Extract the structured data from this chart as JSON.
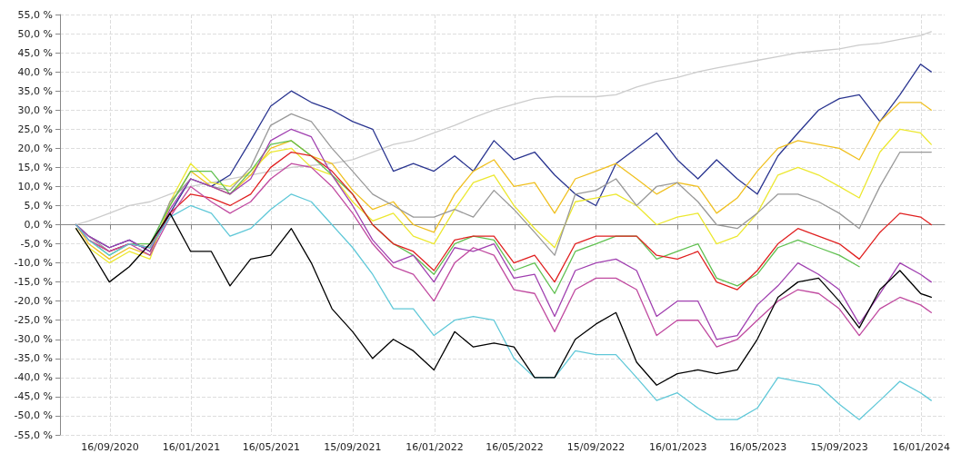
{
  "chart_data": {
    "type": "line",
    "x": [
      "2020-07-27",
      "2020-08-15",
      "2020-09-15",
      "2020-10-15",
      "2020-11-15",
      "2020-12-15",
      "2021-01-15",
      "2021-02-15",
      "2021-03-15",
      "2021-04-15",
      "2021-05-15",
      "2021-06-15",
      "2021-07-15",
      "2021-08-15",
      "2021-09-15",
      "2021-10-15",
      "2021-11-15",
      "2021-12-15",
      "2022-01-15",
      "2022-02-15",
      "2022-03-15",
      "2022-04-15",
      "2022-05-15",
      "2022-06-15",
      "2022-07-15",
      "2022-08-15",
      "2022-09-15",
      "2022-10-15",
      "2022-11-15",
      "2022-12-15",
      "2023-01-15",
      "2023-02-15",
      "2023-03-15",
      "2023-04-15",
      "2023-05-15",
      "2023-06-15",
      "2023-07-15",
      "2023-08-15",
      "2023-09-15",
      "2023-10-15",
      "2023-11-15",
      "2023-12-15",
      "2024-01-15",
      "2024-01-31"
    ],
    "series": [
      {
        "color": "#cccccc",
        "values": [
          0,
          1,
          3,
          5,
          6,
          8,
          10,
          11,
          12,
          13,
          14,
          15,
          15.5,
          16,
          17,
          19,
          21,
          22,
          24,
          26,
          28,
          30,
          31.5,
          33,
          33.5,
          33.5,
          33.5,
          34,
          36,
          37.5,
          38.5,
          40,
          41,
          42,
          43,
          44,
          45,
          45.5,
          46,
          47,
          47.5,
          48.5,
          49.5,
          50.5
        ]
      },
      {
        "color": "#2a3590",
        "values": [
          0,
          -3,
          -6,
          -4,
          -7,
          3,
          12,
          10,
          13,
          22,
          31,
          35,
          32,
          30,
          27,
          25,
          14,
          16,
          14,
          18,
          14,
          22,
          17,
          19,
          13,
          8,
          5,
          16,
          20,
          24,
          17,
          12,
          17,
          12,
          8,
          18,
          24,
          30,
          33,
          34,
          27,
          34,
          42,
          40
        ]
      },
      {
        "color": "#f0c020",
        "values": [
          0,
          -5,
          -9,
          -6,
          -8,
          5,
          14,
          10,
          8,
          13,
          20,
          22,
          18,
          16,
          9,
          4,
          6,
          0,
          -2,
          8,
          14,
          17,
          10,
          11,
          3,
          12,
          14,
          16,
          12,
          8,
          11,
          10,
          3,
          7,
          14,
          20,
          22,
          21,
          20,
          17,
          27,
          32,
          32,
          30
        ]
      },
      {
        "color": "#ece830",
        "values": [
          -1,
          -6,
          -10,
          -7,
          -9,
          6,
          16,
          11,
          10,
          14,
          19,
          20,
          15,
          13,
          6,
          1,
          3,
          -3,
          -5,
          4,
          11,
          13,
          5,
          -1,
          -6,
          6,
          7,
          8,
          5,
          0,
          2,
          3,
          -5,
          -3,
          3,
          13,
          15,
          13,
          10,
          7,
          19,
          25,
          24,
          21
        ]
      },
      {
        "color": "#999999",
        "values": [
          0,
          -3,
          -7,
          -5,
          -6,
          6,
          12,
          10,
          9,
          15,
          26,
          29,
          27,
          20,
          14,
          8,
          5,
          2,
          2,
          4,
          2,
          9,
          4,
          -2,
          -8,
          8,
          9,
          12,
          5,
          10,
          11,
          6,
          0,
          -1,
          3,
          8,
          8,
          6,
          3,
          -1,
          10,
          19,
          19,
          19
        ]
      },
      {
        "color": "#60c050",
        "values": [
          0,
          -4,
          -8,
          -5,
          -5,
          5,
          14,
          14,
          8,
          14,
          21,
          22,
          18,
          13,
          8,
          0,
          -5,
          -8,
          -13,
          -5,
          -3,
          -4,
          -12,
          -10,
          -18,
          -7,
          -5,
          -3,
          -3,
          -9,
          -7,
          -5,
          -14,
          -16,
          -13,
          -6,
          -4,
          -6,
          -8,
          -11,
          null,
          null,
          null,
          null
        ]
      },
      {
        "color": "#e02020",
        "values": [
          0,
          -4,
          -7,
          -5,
          -6,
          3,
          8,
          7,
          5,
          8,
          15,
          19,
          18,
          14,
          8,
          0,
          -5,
          -7,
          -12,
          -4,
          -3,
          -3,
          -10,
          -8,
          -15,
          -5,
          -3,
          -3,
          -3,
          -8,
          -9,
          -7,
          -15,
          -17,
          -12,
          -5,
          -1,
          -3,
          -5,
          -9,
          -2,
          3,
          2,
          0
        ]
      },
      {
        "color": "#a040b0",
        "values": [
          0,
          -3,
          -6,
          -4,
          -7,
          4,
          12,
          10,
          8,
          12,
          22,
          25,
          23,
          13,
          5,
          -4,
          -10,
          -8,
          -15,
          -6,
          -7,
          -5,
          -14,
          -13,
          -24,
          -12,
          -10,
          -9,
          -12,
          -24,
          -20,
          -20,
          -30,
          -29,
          -21,
          -16,
          -10,
          -13,
          -17,
          -26,
          -18,
          -10,
          -13,
          -15
        ]
      },
      {
        "color": "#c04aa0",
        "values": [
          0,
          -4,
          -7,
          -5,
          -8,
          2,
          10,
          6,
          3,
          6,
          12,
          16,
          15,
          10,
          3,
          -5,
          -11,
          -13,
          -20,
          -10,
          -6,
          -8,
          -17,
          -18,
          -28,
          -17,
          -14,
          -14,
          -17,
          -29,
          -25,
          -25,
          -32,
          -30,
          -25,
          -20,
          -17,
          -18,
          -22,
          -29,
          -22,
          -19,
          -21,
          -23
        ]
      },
      {
        "color": "#60c8d8",
        "values": [
          0,
          -4,
          -8,
          -5,
          -6,
          2,
          5,
          3,
          -3,
          -1,
          4,
          8,
          6,
          0,
          -6,
          -13,
          -22,
          -22,
          -29,
          -25,
          -24,
          -25,
          -35,
          -40,
          -40,
          -33,
          -34,
          -34,
          -40,
          -46,
          -44,
          -48,
          -51,
          -51,
          -48,
          -40,
          -41,
          -42,
          -47,
          -51,
          -46,
          -41,
          -44,
          -46
        ]
      },
      {
        "color": "#000000",
        "values": [
          -1,
          -6,
          -15,
          -11,
          -5,
          3,
          -7,
          -7,
          -16,
          -9,
          -8,
          -1,
          -10,
          -22,
          -28,
          -35,
          -30,
          -33,
          -38,
          -28,
          -32,
          -31,
          -32,
          -40,
          -40,
          -30,
          -26,
          -23,
          -36,
          -42,
          -39,
          -38,
          -39,
          -38,
          -30,
          -19,
          -15,
          -14,
          -20,
          -27,
          -17,
          -12,
          -18,
          -19
        ]
      }
    ],
    "xlim": [
      "2020-07-03",
      "2024-02-20"
    ],
    "xticks": [
      {
        "value": "2020-09-16",
        "label": "16/09/2020"
      },
      {
        "value": "2021-01-16",
        "label": "16/01/2021"
      },
      {
        "value": "2021-05-16",
        "label": "16/05/2021"
      },
      {
        "value": "2021-09-15",
        "label": "15/09/2021"
      },
      {
        "value": "2022-01-16",
        "label": "16/01/2022"
      },
      {
        "value": "2022-05-16",
        "label": "16/05/2022"
      },
      {
        "value": "2022-09-15",
        "label": "15/09/2022"
      },
      {
        "value": "2023-01-16",
        "label": "16/01/2023"
      },
      {
        "value": "2023-05-16",
        "label": "16/05/2023"
      },
      {
        "value": "2023-09-15",
        "label": "15/09/2023"
      },
      {
        "value": "2024-01-16",
        "label": "16/01/2024"
      }
    ],
    "ylim": [
      -55,
      55
    ],
    "yticks": [
      {
        "value": -55,
        "label": "-55,0 %"
      },
      {
        "value": -50,
        "label": "-50,0 %"
      },
      {
        "value": -45,
        "label": "-45,0 %"
      },
      {
        "value": -40,
        "label": "-40,0 %"
      },
      {
        "value": -35,
        "label": "-35,0 %"
      },
      {
        "value": -30,
        "label": "-30,0 %"
      },
      {
        "value": -25,
        "label": "-25,0 %"
      },
      {
        "value": -20,
        "label": "-20,0 %"
      },
      {
        "value": -15,
        "label": "-15,0 %"
      },
      {
        "value": -10,
        "label": "-10,0 %"
      },
      {
        "value": -5,
        "label": "-5,0 %"
      },
      {
        "value": 0,
        "label": "0,0 %"
      },
      {
        "value": 5,
        "label": "5,0 %"
      },
      {
        "value": 10,
        "label": "10,0 %"
      },
      {
        "value": 15,
        "label": "15,0 %"
      },
      {
        "value": 20,
        "label": "20,0 %"
      },
      {
        "value": 25,
        "label": "25,0 %"
      },
      {
        "value": 30,
        "label": "30,0 %"
      },
      {
        "value": 35,
        "label": "35,0 %"
      },
      {
        "value": 40,
        "label": "40,0 %"
      },
      {
        "value": 45,
        "label": "45,0 %"
      },
      {
        "value": 50,
        "label": "50,0 %"
      },
      {
        "value": 55,
        "label": "55,0 %"
      }
    ],
    "grid": true,
    "marker": "none"
  }
}
